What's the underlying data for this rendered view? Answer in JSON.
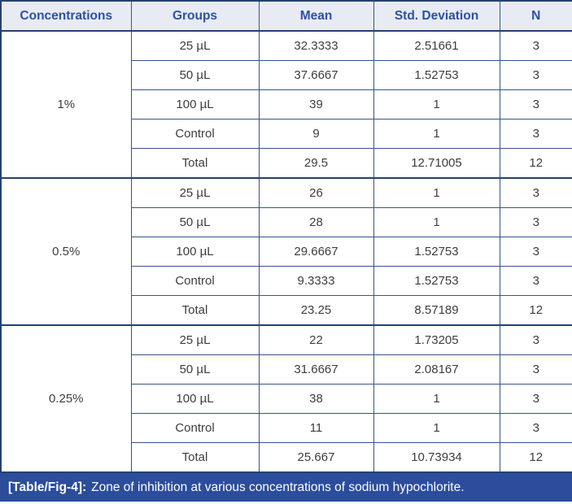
{
  "table": {
    "columns": [
      "Concentrations",
      "Groups",
      "Mean",
      "Std. Deviation",
      "N"
    ],
    "groups": [
      {
        "concentration": "1%",
        "rows": [
          {
            "group": "25 µL",
            "mean": "32.3333",
            "std": "2.51661",
            "n": "3"
          },
          {
            "group": "50 µL",
            "mean": "37.6667",
            "std": "1.52753",
            "n": "3"
          },
          {
            "group": "100 µL",
            "mean": "39",
            "std": "1",
            "n": "3"
          },
          {
            "group": "Control",
            "mean": "9",
            "std": "1",
            "n": "3"
          },
          {
            "group": "Total",
            "mean": "29.5",
            "std": "12.71005",
            "n": "12"
          }
        ]
      },
      {
        "concentration": "0.5%",
        "rows": [
          {
            "group": "25 µL",
            "mean": "26",
            "std": "1",
            "n": "3"
          },
          {
            "group": "50 µL",
            "mean": "28",
            "std": "1",
            "n": "3"
          },
          {
            "group": "100 µL",
            "mean": "29.6667",
            "std": "1.52753",
            "n": "3"
          },
          {
            "group": "Control",
            "mean": "9.3333",
            "std": "1.52753",
            "n": "3"
          },
          {
            "group": "Total",
            "mean": "23.25",
            "std": "8.57189",
            "n": "12"
          }
        ]
      },
      {
        "concentration": "0.25%",
        "rows": [
          {
            "group": "25 µL",
            "mean": "22",
            "std": "1.73205",
            "n": "3"
          },
          {
            "group": "50 µL",
            "mean": "31.6667",
            "std": "2.08167",
            "n": "3"
          },
          {
            "group": "100 µL",
            "mean": "38",
            "std": "1",
            "n": "3"
          },
          {
            "group": "Control",
            "mean": "11",
            "std": "1",
            "n": "3"
          },
          {
            "group": "Total",
            "mean": "25.667",
            "std": "10.73934",
            "n": "12"
          }
        ]
      }
    ]
  },
  "caption": {
    "label": "[Table/Fig-4]:",
    "text": "Zone of inhibition at various concentrations of sodium hypochlorite."
  },
  "colors": {
    "outer_border": "#24416f",
    "inner_border": "#35548a",
    "header_bg": "#e8ebf4",
    "header_text": "#2b50a5",
    "caption_bg": "#2b4d9b",
    "caption_text": "#ffffff",
    "cell_text": "#3d3d3d"
  }
}
